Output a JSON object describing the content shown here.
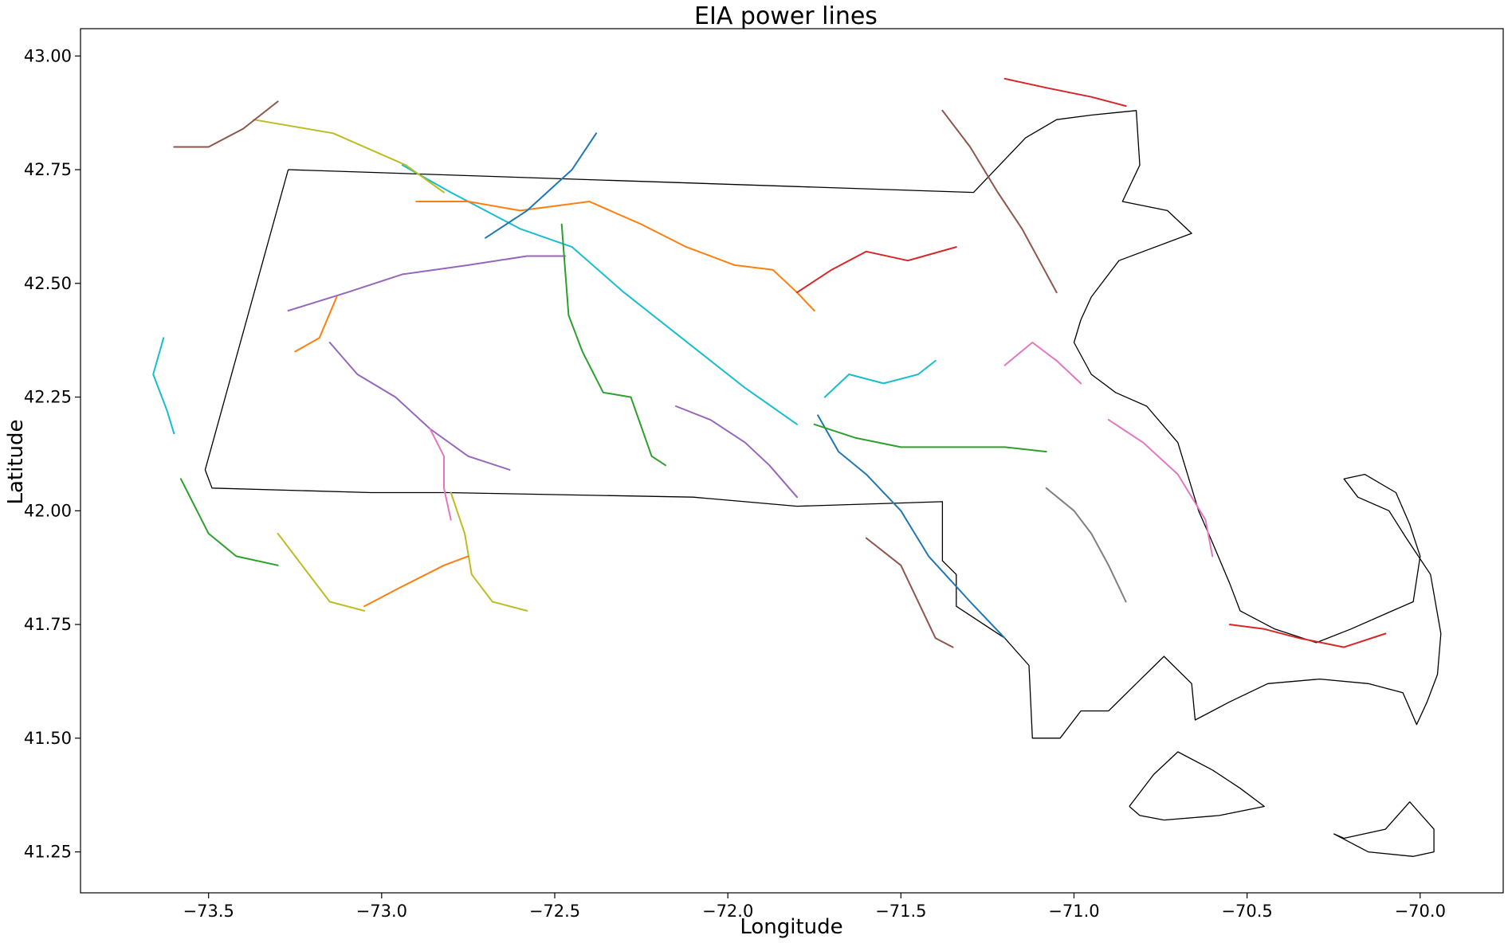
{
  "chart_data": {
    "type": "map",
    "title": "EIA power lines",
    "xlabel": "Longitude",
    "ylabel": "Latitude",
    "xlim": [
      -73.87,
      -69.76
    ],
    "ylim": [
      41.16,
      43.06
    ],
    "x_ticks": [
      {
        "value": -73.5,
        "label": "−73.5"
      },
      {
        "value": -73.0,
        "label": "−73.0"
      },
      {
        "value": -72.5,
        "label": "−72.5"
      },
      {
        "value": -72.0,
        "label": "−72.0"
      },
      {
        "value": -71.5,
        "label": "−71.5"
      },
      {
        "value": -71.0,
        "label": "−71.0"
      },
      {
        "value": -70.5,
        "label": "−70.5"
      },
      {
        "value": -70.0,
        "label": "−70.0"
      }
    ],
    "y_ticks": [
      {
        "value": 41.25,
        "label": "41.25"
      },
      {
        "value": 41.5,
        "label": "41.50"
      },
      {
        "value": 41.75,
        "label": "41.75"
      },
      {
        "value": 42.0,
        "label": "42.00"
      },
      {
        "value": 42.25,
        "label": "42.25"
      },
      {
        "value": 42.5,
        "label": "42.50"
      },
      {
        "value": 42.75,
        "label": "42.75"
      },
      {
        "value": 43.0,
        "label": "43.00"
      }
    ],
    "grid": false,
    "legend": false,
    "palette": [
      "#1f77b4",
      "#ff7f0e",
      "#2ca02c",
      "#d62728",
      "#9467bd",
      "#8c564b",
      "#e377c2",
      "#7f7f7f",
      "#bcbd22",
      "#17becf"
    ],
    "state_outline": [
      [
        -73.27,
        42.75
      ],
      [
        -71.29,
        42.7
      ],
      [
        -71.14,
        42.82
      ],
      [
        -71.05,
        42.86
      ],
      [
        -70.95,
        42.87
      ],
      [
        -70.82,
        42.88
      ],
      [
        -70.81,
        42.76
      ],
      [
        -70.86,
        42.68
      ],
      [
        -70.73,
        42.66
      ],
      [
        -70.66,
        42.61
      ],
      [
        -70.87,
        42.55
      ],
      [
        -70.95,
        42.47
      ],
      [
        -70.98,
        42.42
      ],
      [
        -71.0,
        42.37
      ],
      [
        -70.95,
        42.3
      ],
      [
        -70.88,
        42.26
      ],
      [
        -70.79,
        42.23
      ],
      [
        -70.7,
        42.15
      ],
      [
        -70.64,
        42.0
      ],
      [
        -70.6,
        41.93
      ],
      [
        -70.55,
        41.84
      ],
      [
        -70.52,
        41.78
      ],
      [
        -70.42,
        41.74
      ],
      [
        -70.3,
        41.71
      ],
      [
        -70.2,
        41.74
      ],
      [
        -70.08,
        41.78
      ],
      [
        -70.02,
        41.8
      ],
      [
        -70.0,
        41.9
      ],
      [
        -70.03,
        41.97
      ],
      [
        -70.07,
        42.04
      ],
      [
        -70.16,
        42.08
      ],
      [
        -70.22,
        42.07
      ],
      [
        -70.18,
        42.03
      ],
      [
        -70.09,
        42.0
      ],
      [
        -70.04,
        41.94
      ],
      [
        -69.97,
        41.86
      ],
      [
        -69.94,
        41.73
      ],
      [
        -69.95,
        41.64
      ],
      [
        -69.98,
        41.58
      ],
      [
        -70.01,
        41.53
      ],
      [
        -70.05,
        41.6
      ],
      [
        -70.15,
        41.62
      ],
      [
        -70.29,
        41.63
      ],
      [
        -70.44,
        41.62
      ],
      [
        -70.55,
        41.58
      ],
      [
        -70.65,
        41.54
      ],
      [
        -70.66,
        41.62
      ],
      [
        -70.74,
        41.68
      ],
      [
        -70.82,
        41.62
      ],
      [
        -70.9,
        41.56
      ],
      [
        -70.98,
        41.56
      ],
      [
        -71.04,
        41.5
      ],
      [
        -71.12,
        41.5
      ],
      [
        -71.13,
        41.66
      ],
      [
        -71.2,
        41.72
      ],
      [
        -71.26,
        41.75
      ],
      [
        -71.34,
        41.79
      ],
      [
        -71.34,
        41.86
      ],
      [
        -71.38,
        41.89
      ],
      [
        -71.38,
        42.02
      ],
      [
        -71.8,
        42.01
      ],
      [
        -72.1,
        42.03
      ],
      [
        -72.81,
        42.04
      ],
      [
        -73.03,
        42.04
      ],
      [
        -73.49,
        42.05
      ],
      [
        -73.51,
        42.09
      ],
      [
        -73.27,
        42.75
      ]
    ],
    "islands": [
      [
        [
          -70.84,
          41.35
        ],
        [
          -70.77,
          41.42
        ],
        [
          -70.7,
          41.47
        ],
        [
          -70.6,
          41.43
        ],
        [
          -70.52,
          41.39
        ],
        [
          -70.45,
          41.35
        ],
        [
          -70.58,
          41.33
        ],
        [
          -70.74,
          41.32
        ],
        [
          -70.81,
          41.33
        ],
        [
          -70.84,
          41.35
        ]
      ],
      [
        [
          -70.25,
          41.29
        ],
        [
          -70.15,
          41.25
        ],
        [
          -70.02,
          41.24
        ],
        [
          -69.96,
          41.25
        ],
        [
          -69.96,
          41.3
        ],
        [
          -70.03,
          41.36
        ],
        [
          -70.1,
          41.3
        ],
        [
          -70.22,
          41.28
        ],
        [
          -70.25,
          41.29
        ]
      ]
    ],
    "series": [
      {
        "name": "",
        "color": "#9467bd",
        "values": [
          [
            -73.27,
            42.44
          ],
          [
            -73.1,
            42.48
          ],
          [
            -72.94,
            42.52
          ],
          [
            -72.75,
            42.54
          ],
          [
            -72.58,
            42.56
          ],
          [
            -72.47,
            42.56
          ]
        ]
      },
      {
        "name": "",
        "color": "#17becf",
        "values": [
          [
            -72.94,
            42.76
          ],
          [
            -72.8,
            42.7
          ],
          [
            -72.6,
            42.62
          ],
          [
            -72.45,
            42.58
          ],
          [
            -72.3,
            42.48
          ],
          [
            -72.1,
            42.36
          ],
          [
            -71.95,
            42.27
          ],
          [
            -71.8,
            42.19
          ]
        ]
      },
      {
        "name": "",
        "color": "#bcbd22",
        "values": [
          [
            -73.37,
            42.86
          ],
          [
            -73.14,
            42.83
          ],
          [
            -72.93,
            42.76
          ],
          [
            -72.82,
            42.7
          ]
        ]
      },
      {
        "name": "",
        "color": "#2ca02c",
        "values": [
          [
            -72.48,
            42.63
          ],
          [
            -72.46,
            42.43
          ],
          [
            -72.42,
            42.35
          ],
          [
            -72.36,
            42.26
          ],
          [
            -72.28,
            42.25
          ],
          [
            -72.22,
            42.12
          ],
          [
            -72.18,
            42.1
          ]
        ]
      },
      {
        "name": "",
        "color": "#1f77b4",
        "values": [
          [
            -71.74,
            42.21
          ],
          [
            -71.68,
            42.13
          ],
          [
            -71.6,
            42.08
          ],
          [
            -71.5,
            42.0
          ],
          [
            -71.42,
            41.9
          ],
          [
            -71.3,
            41.8
          ],
          [
            -71.2,
            41.72
          ]
        ]
      },
      {
        "name": "",
        "color": "#ff7f0e",
        "values": [
          [
            -72.9,
            42.68
          ],
          [
            -72.75,
            42.68
          ],
          [
            -72.6,
            42.66
          ],
          [
            -72.4,
            42.68
          ],
          [
            -72.25,
            42.63
          ],
          [
            -72.12,
            42.58
          ],
          [
            -71.98,
            42.54
          ],
          [
            -71.87,
            42.53
          ],
          [
            -71.8,
            42.48
          ],
          [
            -71.75,
            42.44
          ]
        ]
      },
      {
        "name": "",
        "color": "#d62728",
        "values": [
          [
            -71.8,
            42.48
          ],
          [
            -71.7,
            42.53
          ],
          [
            -71.6,
            42.57
          ],
          [
            -71.48,
            42.55
          ],
          [
            -71.34,
            42.58
          ]
        ]
      },
      {
        "name": "",
        "color": "#9467bd",
        "values": [
          [
            -73.15,
            42.37
          ],
          [
            -73.07,
            42.3
          ],
          [
            -72.96,
            42.25
          ],
          [
            -72.86,
            42.18
          ],
          [
            -72.75,
            42.12
          ],
          [
            -72.63,
            42.09
          ]
        ]
      },
      {
        "name": "",
        "color": "#e377c2",
        "values": [
          [
            -72.86,
            42.18
          ],
          [
            -72.82,
            42.12
          ],
          [
            -72.82,
            42.05
          ],
          [
            -72.8,
            41.98
          ]
        ]
      },
      {
        "name": "",
        "color": "#bcbd22",
        "values": [
          [
            -72.8,
            42.04
          ],
          [
            -72.76,
            41.95
          ],
          [
            -72.74,
            41.86
          ],
          [
            -72.68,
            41.8
          ],
          [
            -72.58,
            41.78
          ]
        ]
      },
      {
        "name": "",
        "color": "#2ca02c",
        "values": [
          [
            -71.75,
            42.19
          ],
          [
            -71.63,
            42.16
          ],
          [
            -71.5,
            42.14
          ],
          [
            -71.35,
            42.14
          ],
          [
            -71.2,
            42.14
          ],
          [
            -71.08,
            42.13
          ]
        ]
      },
      {
        "name": "",
        "color": "#d62728",
        "values": [
          [
            -71.2,
            42.95
          ],
          [
            -71.08,
            42.93
          ],
          [
            -70.95,
            42.91
          ],
          [
            -70.85,
            42.89
          ]
        ]
      },
      {
        "name": "",
        "color": "#8c564b",
        "values": [
          [
            -71.38,
            42.88
          ],
          [
            -71.3,
            42.8
          ],
          [
            -71.22,
            42.7
          ],
          [
            -71.15,
            42.62
          ],
          [
            -71.1,
            42.55
          ],
          [
            -71.05,
            42.48
          ]
        ]
      },
      {
        "name": "",
        "color": "#1f77b4",
        "values": [
          [
            -72.38,
            42.83
          ],
          [
            -72.45,
            42.75
          ],
          [
            -72.58,
            42.66
          ],
          [
            -72.7,
            42.6
          ]
        ]
      },
      {
        "name": "",
        "color": "#ff7f0e",
        "values": [
          [
            -73.13,
            42.47
          ],
          [
            -73.18,
            42.38
          ],
          [
            -73.25,
            42.35
          ]
        ]
      },
      {
        "name": "",
        "color": "#17becf",
        "values": [
          [
            -73.63,
            42.38
          ],
          [
            -73.66,
            42.3
          ],
          [
            -73.62,
            42.22
          ],
          [
            -73.6,
            42.17
          ]
        ]
      },
      {
        "name": "",
        "color": "#2ca02c",
        "values": [
          [
            -73.58,
            42.07
          ],
          [
            -73.5,
            41.95
          ],
          [
            -73.42,
            41.9
          ],
          [
            -73.3,
            41.88
          ]
        ]
      },
      {
        "name": "",
        "color": "#bcbd22",
        "values": [
          [
            -73.3,
            41.95
          ],
          [
            -73.22,
            41.87
          ],
          [
            -73.15,
            41.8
          ],
          [
            -73.05,
            41.78
          ]
        ]
      },
      {
        "name": "",
        "color": "#ff7f0e",
        "values": [
          [
            -73.05,
            41.79
          ],
          [
            -72.95,
            41.83
          ],
          [
            -72.82,
            41.88
          ],
          [
            -72.75,
            41.9
          ]
        ]
      },
      {
        "name": "",
        "color": "#8c564b",
        "values": [
          [
            -71.6,
            41.94
          ],
          [
            -71.5,
            41.88
          ],
          [
            -71.45,
            41.8
          ],
          [
            -71.4,
            41.72
          ],
          [
            -71.35,
            41.7
          ]
        ]
      },
      {
        "name": "",
        "color": "#e377c2",
        "values": [
          [
            -70.9,
            42.2
          ],
          [
            -70.8,
            42.15
          ],
          [
            -70.7,
            42.08
          ],
          [
            -70.62,
            41.98
          ],
          [
            -70.6,
            41.9
          ]
        ]
      },
      {
        "name": "",
        "color": "#d62728",
        "values": [
          [
            -70.55,
            41.75
          ],
          [
            -70.45,
            41.74
          ],
          [
            -70.35,
            41.72
          ],
          [
            -70.22,
            41.7
          ],
          [
            -70.1,
            41.73
          ]
        ]
      },
      {
        "name": "",
        "color": "#9467bd",
        "values": [
          [
            -72.15,
            42.23
          ],
          [
            -72.05,
            42.2
          ],
          [
            -71.95,
            42.15
          ],
          [
            -71.88,
            42.1
          ],
          [
            -71.8,
            42.03
          ]
        ]
      },
      {
        "name": "",
        "color": "#17becf",
        "values": [
          [
            -71.72,
            42.25
          ],
          [
            -71.65,
            42.3
          ],
          [
            -71.55,
            42.28
          ],
          [
            -71.45,
            42.3
          ],
          [
            -71.4,
            42.33
          ]
        ]
      },
      {
        "name": "",
        "color": "#e377c2",
        "values": [
          [
            -71.2,
            42.32
          ],
          [
            -71.12,
            42.37
          ],
          [
            -71.05,
            42.33
          ],
          [
            -70.98,
            42.28
          ]
        ]
      },
      {
        "name": "",
        "color": "#7f7f7f",
        "values": [
          [
            -71.08,
            42.05
          ],
          [
            -71.0,
            42.0
          ],
          [
            -70.95,
            41.95
          ],
          [
            -70.9,
            41.88
          ],
          [
            -70.85,
            41.8
          ]
        ]
      },
      {
        "name": "",
        "color": "#8c564b",
        "values": [
          [
            -73.6,
            42.8
          ],
          [
            -73.5,
            42.8
          ],
          [
            -73.4,
            42.84
          ],
          [
            -73.3,
            42.9
          ]
        ]
      }
    ]
  }
}
